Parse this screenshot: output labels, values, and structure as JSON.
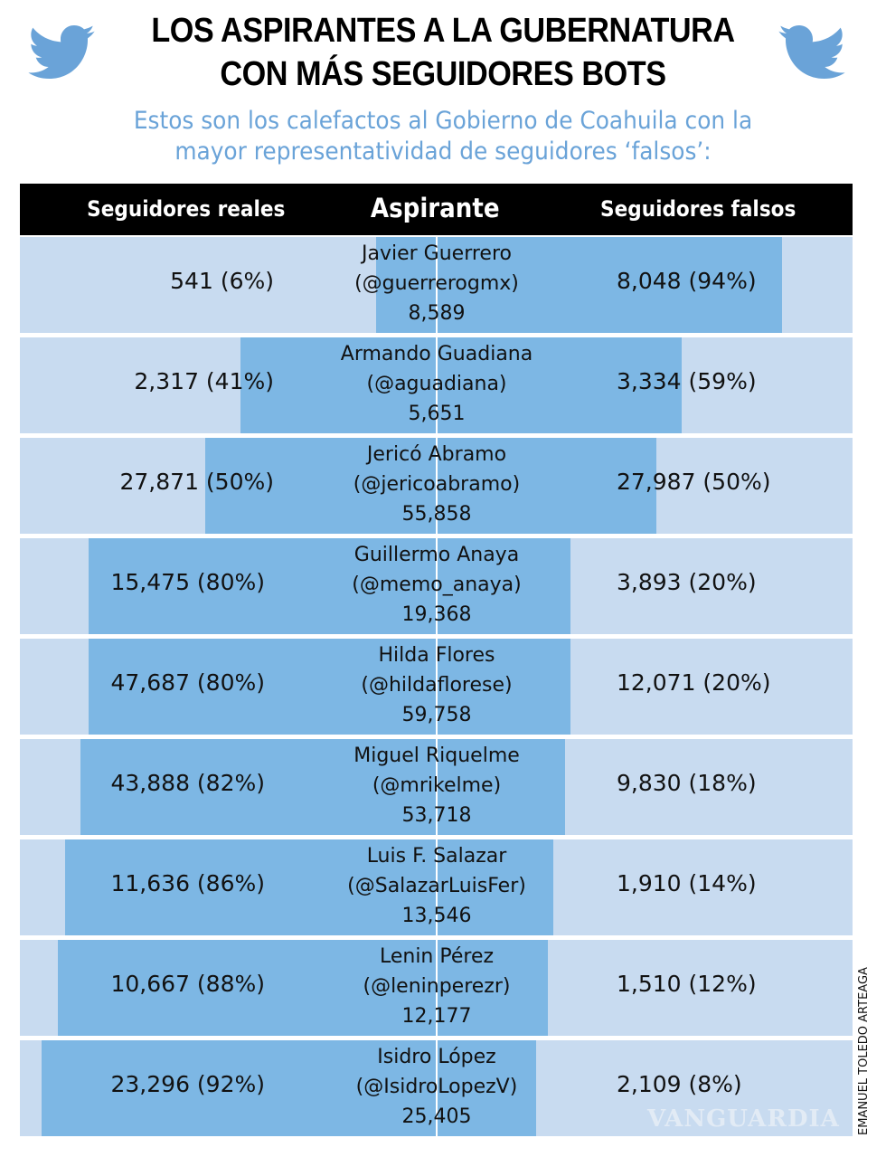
{
  "title_line1": "LOS ASPIRANTES A LA GUBERNATURA",
  "title_line2": "CON MÁS SEGUIDORES BOTS",
  "subtitle_line1": "Estos son los calefactos al Gobierno de Coahuila con la",
  "subtitle_line2": "mayor representatividad de seguidores ‘falsos’:",
  "credit": "EMANUEL TOLEDO ARTEAGA",
  "watermark": "VANGUARDIA",
  "colors": {
    "bar": "#7db7e4",
    "background": "#c8dbf0",
    "header": "#000000",
    "subtitle": "#6aa3d8"
  },
  "icons": [
    "twitter-bird-icon",
    "twitter-bird-icon"
  ],
  "chart_data": {
    "type": "bar",
    "layout": "diverging",
    "columns": {
      "real": "Seguidores reales",
      "aspirant": "Aspirante",
      "fake": "Seguidores falsos"
    },
    "rows": [
      {
        "name": "Javier Guerrero",
        "handle": "(@guerrerogmx)",
        "total": "8,589",
        "real": "541 (6%)",
        "fake": "8,048 (94%)",
        "real_pct": 6,
        "fake_pct": 94
      },
      {
        "name": "Armando Guadiana",
        "handle": "(@aguadiana)",
        "total": "5,651",
        "real": "2,317 (41%)",
        "fake": "3,334 (59%)",
        "real_pct": 41,
        "fake_pct": 59
      },
      {
        "name": "Jericó Abramo",
        "handle": "(@jericoabramo)",
        "total": "55,858",
        "real": "27,871 (50%)",
        "fake": "27,987 (50%)",
        "real_pct": 50,
        "fake_pct": 50
      },
      {
        "name": "Guillermo Anaya",
        "handle": "(@memo_anaya)",
        "total": "19,368",
        "real": "15,475 (80%)",
        "fake": "3,893 (20%)",
        "real_pct": 80,
        "fake_pct": 20
      },
      {
        "name": "Hilda Flores",
        "handle": "(@hildaflorese)",
        "total": "59,758",
        "real": "47,687 (80%)",
        "fake": "12,071 (20%)",
        "real_pct": 80,
        "fake_pct": 20
      },
      {
        "name": "Miguel Riquelme",
        "handle": "(@mrikelme)",
        "total": "53,718",
        "real": "43,888 (82%)",
        "fake": "9,830 (18%)",
        "real_pct": 82,
        "fake_pct": 18
      },
      {
        "name": "Luis F. Salazar",
        "handle": "(@SalazarLuisFer)",
        "total": "13,546",
        "real": "11,636 (86%)",
        "fake": "1,910 (14%)",
        "real_pct": 86,
        "fake_pct": 14
      },
      {
        "name": "Lenin Pérez",
        "handle": "(@leninperezr)",
        "total": "12,177",
        "real": "10,667 (88%)",
        "fake": "1,510 (12%)",
        "real_pct": 88,
        "fake_pct": 12
      },
      {
        "name": "Isidro López",
        "handle": "(@IsidroLopezV)",
        "total": "25,405",
        "real": "23,296 (92%)",
        "fake": "2,109 (8%)",
        "real_pct": 92,
        "fake_pct": 8
      }
    ]
  }
}
